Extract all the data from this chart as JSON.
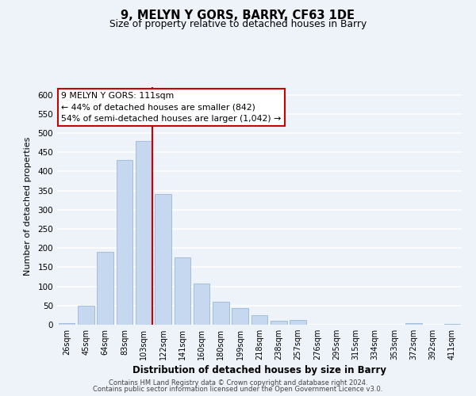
{
  "title": "9, MELYN Y GORS, BARRY, CF63 1DE",
  "subtitle": "Size of property relative to detached houses in Barry",
  "xlabel": "Distribution of detached houses by size in Barry",
  "ylabel": "Number of detached properties",
  "categories": [
    "26sqm",
    "45sqm",
    "64sqm",
    "83sqm",
    "103sqm",
    "122sqm",
    "141sqm",
    "160sqm",
    "180sqm",
    "199sqm",
    "218sqm",
    "238sqm",
    "257sqm",
    "276sqm",
    "295sqm",
    "315sqm",
    "334sqm",
    "353sqm",
    "372sqm",
    "392sqm",
    "411sqm"
  ],
  "values": [
    5,
    50,
    190,
    430,
    480,
    340,
    175,
    108,
    60,
    43,
    25,
    10,
    12,
    0,
    0,
    0,
    0,
    0,
    5,
    0,
    2
  ],
  "bar_color": "#c5d8f0",
  "bar_edge_color": "#9ab8d8",
  "vline_x_index": 4,
  "vline_color": "#cc0000",
  "annotation_line1": "9 MELYN Y GORS: 111sqm",
  "annotation_line2": "← 44% of detached houses are smaller (842)",
  "annotation_line3": "54% of semi-detached houses are larger (1,042) →",
  "annotation_box_color": "#ffffff",
  "annotation_box_edge": "#cc0000",
  "ylim": [
    0,
    620
  ],
  "yticks": [
    0,
    50,
    100,
    150,
    200,
    250,
    300,
    350,
    400,
    450,
    500,
    550,
    600
  ],
  "footer1": "Contains HM Land Registry data © Crown copyright and database right 2024.",
  "footer2": "Contains public sector information licensed under the Open Government Licence v3.0.",
  "background_color": "#eef2f9",
  "grid_color": "#ffffff"
}
